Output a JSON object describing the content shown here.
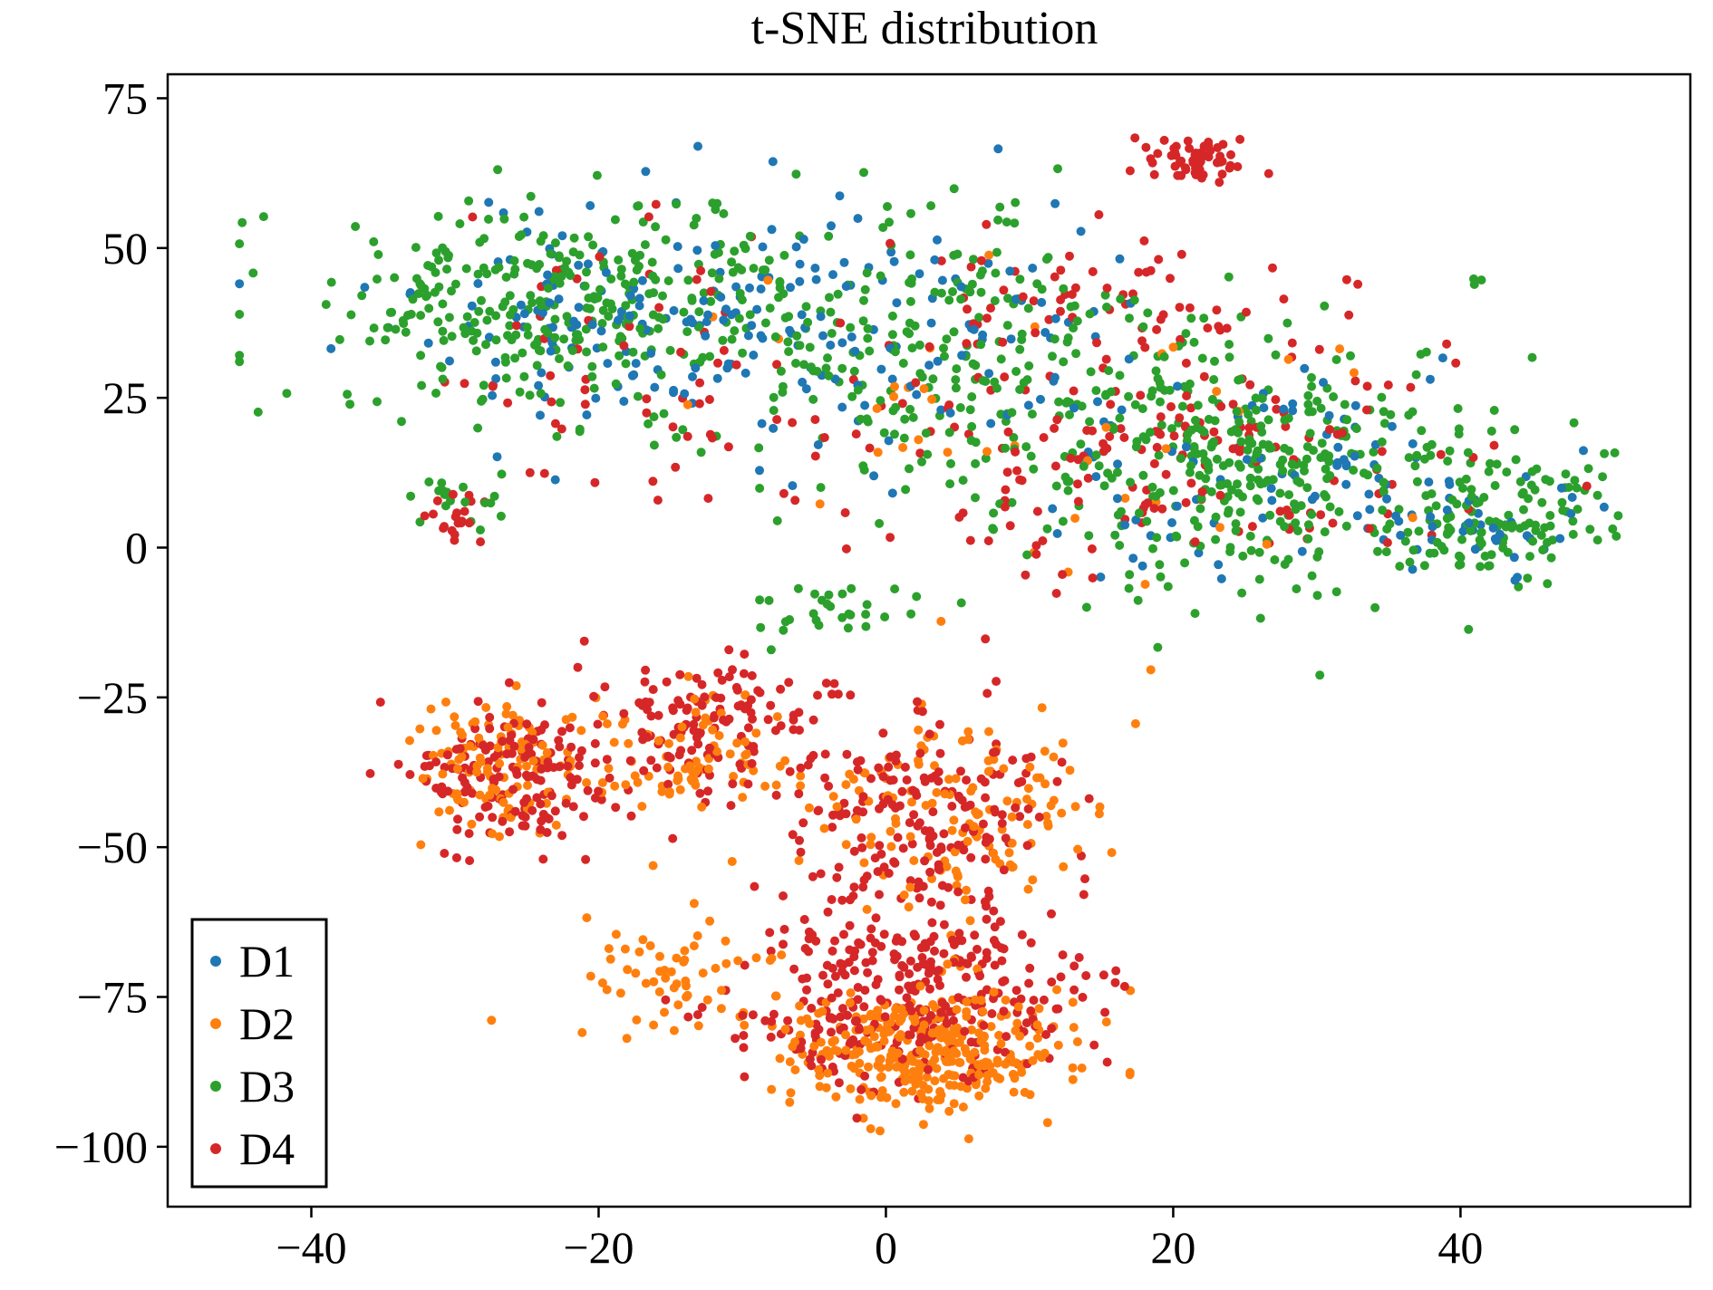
{
  "chart_data": {
    "type": "scatter",
    "title": "t-SNE distribution",
    "xlabel": "",
    "ylabel": "",
    "xlim": [
      -50,
      56
    ],
    "ylim": [
      -110,
      79
    ],
    "xticks": [
      -40,
      -20,
      0,
      20,
      40
    ],
    "yticks": [
      75,
      50,
      25,
      0,
      -25,
      -50,
      -75,
      -100
    ],
    "grid": false,
    "legend_position": "lower-left",
    "series": [
      {
        "name": "D1",
        "color": "#1f77b4",
        "points_estimated": 360,
        "regions": [
          {
            "center": [
              -18,
              40
            ],
            "spread": [
              13,
              16
            ],
            "count": 150
          },
          {
            "center": [
              5,
              35
            ],
            "spread": [
              13,
              18
            ],
            "count": 90
          },
          {
            "center": [
              28,
              12
            ],
            "spread": [
              14,
              16
            ],
            "count": 90
          },
          {
            "center": [
              42,
              2
            ],
            "spread": [
              6,
              9
            ],
            "count": 30
          }
        ]
      },
      {
        "name": "D2",
        "color": "#ff7f0e",
        "points_estimated": 760,
        "regions": [
          {
            "center": [
              -27,
              -35
            ],
            "spread": [
              5,
              9
            ],
            "count": 110
          },
          {
            "center": [
              -13,
              -35
            ],
            "spread": [
              6,
              9
            ],
            "count": 80
          },
          {
            "center": [
              5,
              -45
            ],
            "spread": [
              8,
              14
            ],
            "count": 140
          },
          {
            "center": [
              3,
              -84
            ],
            "spread": [
              8,
              9
            ],
            "count": 330
          },
          {
            "center": [
              -15,
              -70
            ],
            "spread": [
              6,
              9
            ],
            "count": 60
          },
          {
            "center": [
              10,
              20
            ],
            "spread": [
              25,
              22
            ],
            "count": 40
          }
        ]
      },
      {
        "name": "D3",
        "color": "#2ca02c",
        "points_estimated": 1100,
        "regions": [
          {
            "center": [
              -22,
              40
            ],
            "spread": [
              14,
              15
            ],
            "count": 330
          },
          {
            "center": [
              3,
              35
            ],
            "spread": [
              14,
              18
            ],
            "count": 220
          },
          {
            "center": [
              25,
              15
            ],
            "spread": [
              14,
              18
            ],
            "count": 380
          },
          {
            "center": [
              42,
              5
            ],
            "spread": [
              7,
              10
            ],
            "count": 120
          },
          {
            "center": [
              -30,
              8
            ],
            "spread": [
              3,
              4
            ],
            "count": 20
          },
          {
            "center": [
              -3,
              -10
            ],
            "spread": [
              5,
              4
            ],
            "count": 30
          }
        ]
      },
      {
        "name": "D4",
        "color": "#d62728",
        "points_estimated": 1200,
        "regions": [
          {
            "center": [
              -26,
              -38
            ],
            "spread": [
              6,
              10
            ],
            "count": 170
          },
          {
            "center": [
              -12,
              -30
            ],
            "spread": [
              6,
              9
            ],
            "count": 130
          },
          {
            "center": [
              3,
              -45
            ],
            "spread": [
              8,
              14
            ],
            "count": 190
          },
          {
            "center": [
              1,
              -75
            ],
            "spread": [
              10,
              12
            ],
            "count": 330
          },
          {
            "center": [
              22,
              65
            ],
            "spread": [
              3,
              3
            ],
            "count": 60
          },
          {
            "center": [
              -30,
              5
            ],
            "spread": [
              2,
              4
            ],
            "count": 20
          },
          {
            "center": [
              20,
              15
            ],
            "spread": [
              18,
              18
            ],
            "count": 170
          },
          {
            "center": [
              -15,
              30
            ],
            "spread": [
              15,
              18
            ],
            "count": 70
          },
          {
            "center": [
              15,
              40
            ],
            "spread": [
              12,
              10
            ],
            "count": 60
          }
        ]
      }
    ]
  }
}
